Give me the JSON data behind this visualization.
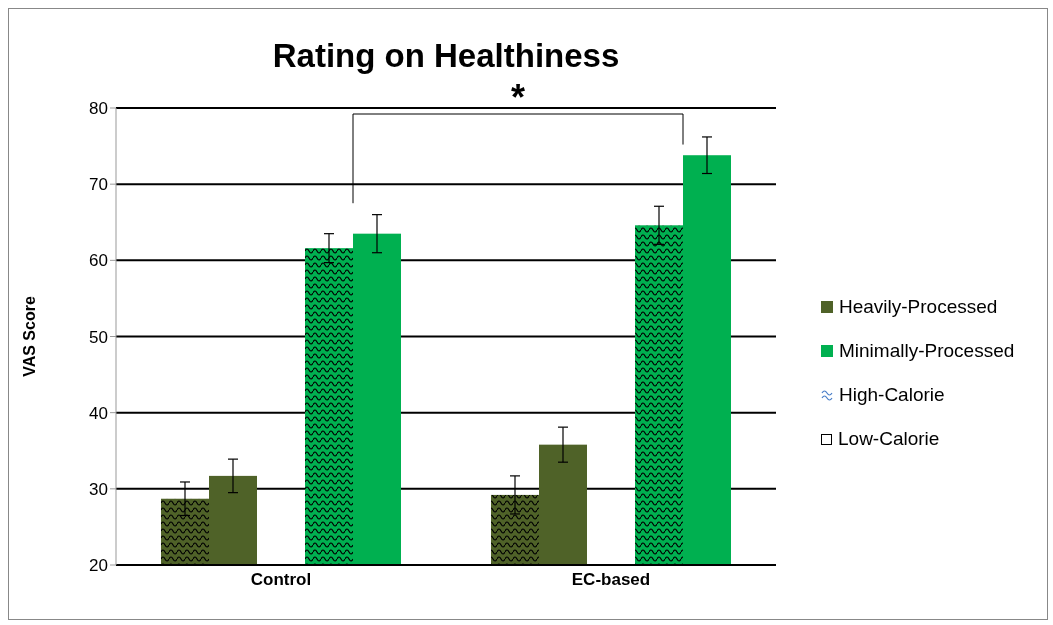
{
  "chart_data": {
    "type": "bar",
    "title": "Rating on Healthiness",
    "ylabel": "VAS Score",
    "categories": [
      "Control",
      "EC-based"
    ],
    "series": [
      {
        "color": "#4f6228",
        "values": [
          28.7,
          29.2
        ],
        "errors": [
          2.2,
          2.5
        ]
      },
      {
        "color": "#4f6228",
        "values": [
          31.7,
          35.8
        ],
        "errors": [
          2.2,
          2.3
        ]
      },
      {
        "color": "#00b050",
        "values": [
          61.6,
          64.6
        ],
        "errors": [
          1.9,
          2.5
        ]
      },
      {
        "color": "#00b050",
        "values": [
          63.5,
          73.8
        ],
        "errors": [
          2.5,
          2.4
        ]
      }
    ],
    "ylim": [
      20,
      80
    ],
    "yticks": [
      20,
      30,
      40,
      50,
      60,
      70,
      80
    ],
    "grid": "y",
    "annotations": [
      "*",
      "Heavily-Processed",
      "Minimally-Processed",
      "High-Calorie",
      "Low-Calorie"
    ]
  }
}
